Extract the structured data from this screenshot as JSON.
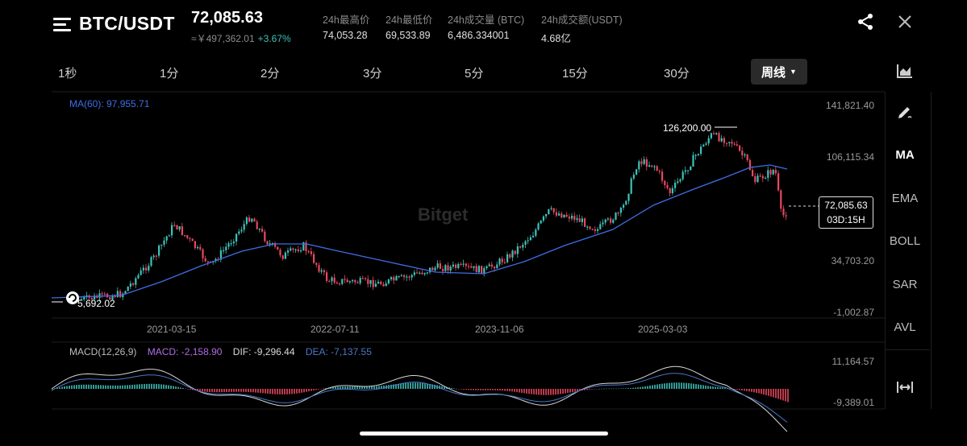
{
  "header": {
    "pair": "BTC/USDT",
    "price": "72,085.63",
    "cny_price": "≈￥497,362.01",
    "change": "+3.67%",
    "stats": [
      {
        "label": "24h最高价",
        "value": "74,053.28"
      },
      {
        "label": "24h最低价",
        "value": "69,533.89"
      },
      {
        "label": "24h成交量 (BTC)",
        "value": "6,486.334001"
      },
      {
        "label": "24h成交额(USDT)",
        "value": "4.68亿"
      }
    ]
  },
  "intervals": [
    "1秒",
    "1分",
    "2分",
    "3分",
    "5分",
    "15分",
    "30分"
  ],
  "selected_interval": "周线",
  "indicators": [
    "MA",
    "EMA",
    "BOLL",
    "SAR",
    "AVL"
  ],
  "active_indicator": "MA",
  "watermark": "Bitget",
  "chart": {
    "ma_label": "MA(60): 97,955.71",
    "price_axis": [
      "141,821.40",
      "106,115.34",
      "34,703.20",
      "-1,002.87"
    ],
    "date_axis": [
      "2021-03-15",
      "2022-07-11",
      "2023-11-06",
      "2025-03-03"
    ],
    "high_marker": "126,200.00",
    "low_marker": "5,692.02",
    "current_price": "72,085.63",
    "countdown": "03D:15H",
    "macd": {
      "label": "MACD(12,26,9)",
      "macd": "MACD: -2,158.90",
      "dif": "DIF: -9,296.44",
      "dea": "DEA: -7,137.55",
      "axis_top": "11,164.57",
      "axis_bottom": "-9,389.01"
    }
  },
  "colors": {
    "up": "#3ec1b9",
    "down": "#e8485f",
    "ma": "#3d6ee6",
    "macd_label": "#b06de6"
  }
}
